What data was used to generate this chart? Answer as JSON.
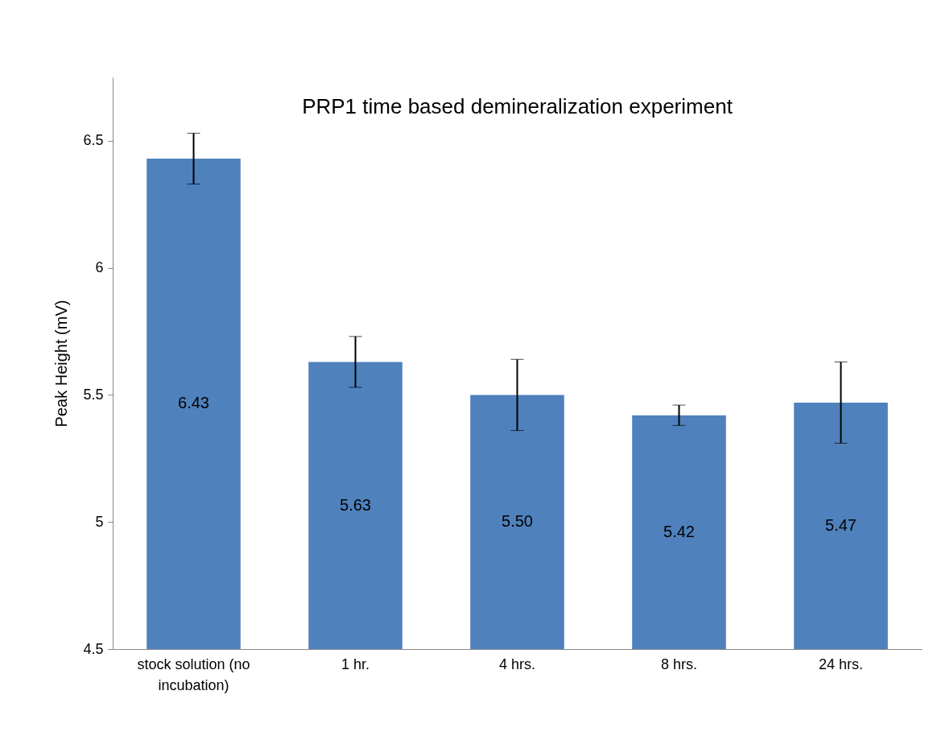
{
  "chart_data": {
    "type": "bar",
    "title": "PRP1 time based demineralization experiment",
    "ylabel": "Peak Height (mV)",
    "categories": [
      "stock solution (no incubation)",
      "1 hr.",
      "4 hrs.",
      "8 hrs.",
      "24 hrs."
    ],
    "values": [
      6.43,
      5.63,
      5.5,
      5.42,
      5.47
    ],
    "value_labels": [
      "6.43",
      "5.63",
      "5.50",
      "5.42",
      "5.47"
    ],
    "errors": [
      0.1,
      0.1,
      0.14,
      0.04,
      0.16
    ],
    "color": "#4f81bd",
    "ylim": [
      4.5,
      6.75
    ],
    "yticks": [
      4.5,
      5,
      5.5,
      6,
      6.5
    ],
    "grid": false
  }
}
